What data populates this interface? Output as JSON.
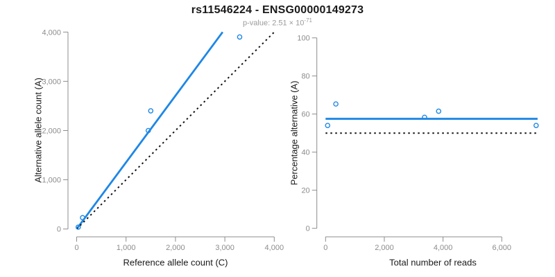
{
  "header": {
    "title": "rs11546224 - ENSG00000149273",
    "pvalue_label": "p-value: 2.51 × 10",
    "pvalue_exponent": "-71"
  },
  "colors": {
    "accent_blue": "#1E87E5",
    "axis_gray": "#8c8c8c",
    "identity_black": "#111111"
  },
  "chart_data": [
    {
      "type": "scatter",
      "name": "allele-counts",
      "xlabel": "Reference allele count (C)",
      "ylabel": "Alternative allele count (A)",
      "xlim": [
        0,
        4000
      ],
      "ylim": [
        0,
        4000
      ],
      "xticks": [
        0,
        1000,
        2000,
        3000,
        4000
      ],
      "yticks": [
        0,
        1000,
        2000,
        3000,
        4000
      ],
      "grid": false,
      "points": [
        [
          32,
          38
        ],
        [
          120,
          230
        ],
        [
          1450,
          2000
        ],
        [
          1500,
          2400
        ],
        [
          3300,
          3900
        ]
      ],
      "lines": [
        {
          "name": "fit-line",
          "x1": 0,
          "y1": 0,
          "x2": 2955,
          "y2": 4000,
          "style": "solid",
          "color": "#1E87E5"
        },
        {
          "name": "identity-line",
          "x1": 0,
          "y1": 0,
          "x2": 4000,
          "y2": 4000,
          "style": "dotted",
          "color": "#111111"
        }
      ]
    },
    {
      "type": "scatter",
      "name": "percentage-vs-reads",
      "xlabel": "Total number of reads",
      "ylabel": "Percentage alternative (A)",
      "xlim": [
        0,
        7300
      ],
      "ylim": [
        0,
        100
      ],
      "xticks": [
        0,
        2000,
        4000,
        6000
      ],
      "yticks": [
        0,
        20,
        40,
        60,
        80,
        100
      ],
      "grid": false,
      "points": [
        [
          70,
          54
        ],
        [
          350,
          65.3
        ],
        [
          3370,
          58.3
        ],
        [
          3850,
          61.5
        ],
        [
          7170,
          54
        ]
      ],
      "lines": [
        {
          "name": "fit-line",
          "x1": 0,
          "y1": 57.5,
          "x2": 7220,
          "y2": 57.5,
          "style": "solid",
          "color": "#1E87E5"
        },
        {
          "name": "identity-line",
          "x1": 0,
          "y1": 50,
          "x2": 7200,
          "y2": 50,
          "style": "dotted",
          "color": "#111111"
        }
      ]
    }
  ]
}
